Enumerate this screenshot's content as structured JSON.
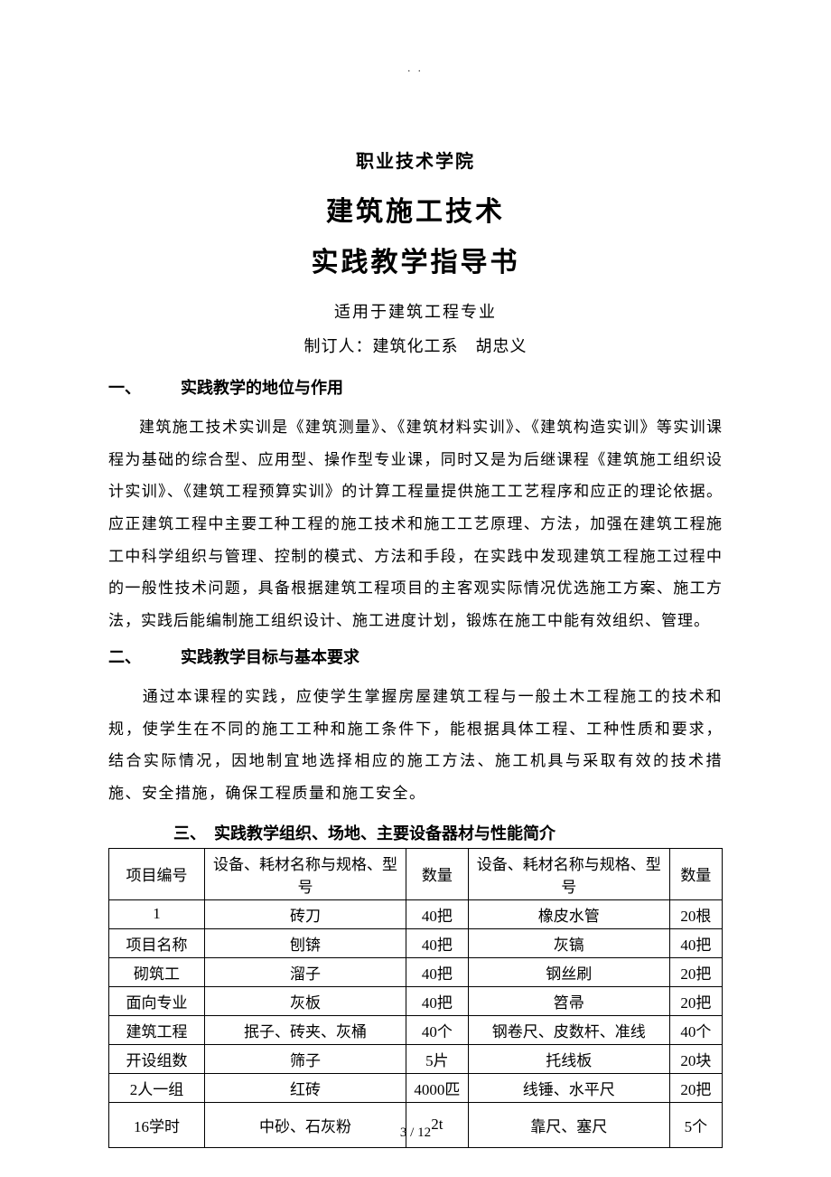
{
  "header": {
    "small_mark": ". ."
  },
  "titles": {
    "t1": "职业技术学院",
    "t2": "建筑施工技术",
    "t3": "实践教学指导书",
    "subtitle": "适用于建筑工程专业",
    "author": "制订人：建筑化工系　胡忠义"
  },
  "section1": {
    "num": "一、",
    "title": "实践教学的地位与作用",
    "body": "建筑施工技术实训是《建筑测量》、《建筑材料实训》、《建筑构造实训》等实训课程为基础的综合型、应用型、操作型专业课，同时又是为后继课程《建筑施工组织设计实训》、《建筑工程预算实训》的计算工程量提供施工工艺程序和应正的理论依据。应正建筑工程中主要工种工程的施工技术和施工工艺原理、方法，加强在建筑工程施工中科学组织与管理、控制的模式、方法和手段，在实践中发现建筑工程施工过程中的一般性技术问题，具备根据建筑工程项目的主客观实际情况优选施工方案、施工方法，实践后能编制施工组织设计、施工进度计划，锻炼在施工中能有效组织、管理。"
  },
  "section2": {
    "num": "二、",
    "title": "实践教学目标与基本要求",
    "body": "　　通过本课程的实践，应使学生掌握房屋建筑工程与一般土木工程施工的技术和规，使学生在不同的施工工种和施工条件下，能根据具体工程、工种性质和要求，结合实际情况，因地制宜地选择相应的施工方法、施工机具与采取有效的技术措施、安全措施，确保工程质量和施工安全。"
  },
  "section3": {
    "num": "三、",
    "title": "实践教学组织、场地、主要设备器材与性能简介"
  },
  "table": {
    "header": {
      "c1": "项目编号",
      "c2": "设备、耗材名称与规格、型号",
      "c3": "数量",
      "c4": "设备、耗材名称与规格、型号",
      "c5": "数量"
    },
    "rows": [
      {
        "c1": "1",
        "c2": "砖刀",
        "c3": "40把",
        "c4": "橡皮水管",
        "c5": "20根"
      },
      {
        "c1": "项目名称",
        "c2": "刨锛",
        "c3": "40把",
        "c4": "灰镐",
        "c5": "40把"
      },
      {
        "c1": "砌筑工",
        "c2": "溜子",
        "c3": "40把",
        "c4": "钢丝刷",
        "c5": "20把"
      },
      {
        "c1": "面向专业",
        "c2": "灰板",
        "c3": "40把",
        "c4": "笤帚",
        "c5": "20把"
      },
      {
        "c1": "建筑工程",
        "c2": "抿子、砖夹、灰桶",
        "c3": "40个",
        "c4": "钢卷尺、皮数杆、准线",
        "c5": "40个"
      },
      {
        "c1": "开设组数",
        "c2": "筛子",
        "c3": "5片",
        "c4": "托线板",
        "c5": "20块"
      },
      {
        "c1": "2人一组",
        "c2": "红砖",
        "c3": "4000匹",
        "c4": "线锤、水平尺",
        "c5": "20把"
      },
      {
        "c1": "16学时",
        "c2": "中砂、石灰粉",
        "c3": "2t",
        "c4": "靠尺、塞尺",
        "c5": "5个"
      }
    ]
  },
  "footer": {
    "page": "3 / 12"
  }
}
